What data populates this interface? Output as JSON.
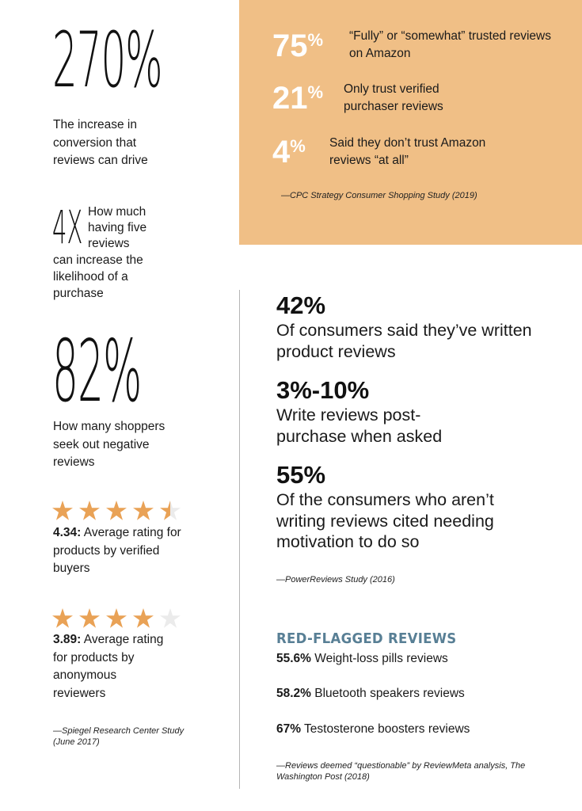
{
  "left": {
    "stat1": {
      "value": "270%",
      "desc": "The increase in conversion that reviews can drive"
    },
    "stat2": {
      "value": "4X",
      "desc_side": "How much having five reviews",
      "desc_below": "can increase the likelihood of a purchase"
    },
    "stat3": {
      "value": "82%",
      "desc": "How many shoppers seek out negative reviews"
    },
    "rating1": {
      "stars": 4.5,
      "value": "4.34:",
      "text": " Average rating for products by verified buyers"
    },
    "rating2": {
      "stars": 4,
      "value": "3.89:",
      "text": " Average rating for products by anonymous reviewers"
    },
    "source": "—Spiegel Research Center Study (June 2017)"
  },
  "panel": {
    "items": [
      {
        "number": "75",
        "pct": "%",
        "text": "“Fully” or “somewhat” trusted reviews on Amazon"
      },
      {
        "number": "21",
        "pct": "%",
        "text": "Only trust verified purchaser reviews"
      },
      {
        "number": "4",
        "pct": "%",
        "text": "Said they don’t trust Amazon reviews “at all”"
      }
    ],
    "source": "—CPC Strategy Consumer Shopping Study (2019)"
  },
  "right": {
    "stats": [
      {
        "value": "42%",
        "desc": "Of consumers said they’ve written product reviews"
      },
      {
        "value": "3%-10%",
        "desc": "Write reviews post-purchase when asked"
      },
      {
        "value": "55%",
        "desc": "Of the consumers who aren’t writing reviews cited needing motivation to do so"
      }
    ],
    "source": "—PowerReviews Study (2016)"
  },
  "red_flagged": {
    "heading": "RED-FLAGGED REVIEWS",
    "items": [
      {
        "value": "55.6%",
        "text": " Weight-loss pills reviews"
      },
      {
        "value": "58.2%",
        "text": " Bluetooth speakers reviews"
      },
      {
        "value": "67%",
        "text": " Testosterone boosters reviews"
      }
    ],
    "source": "—Reviews deemed “questionable” by ReviewMeta analysis, The Washington Post (2018)"
  },
  "colors": {
    "panel": "#f0bf86",
    "star_filled": "#e9a256",
    "star_empty": "#ebebeb",
    "heading": "#587f95"
  }
}
